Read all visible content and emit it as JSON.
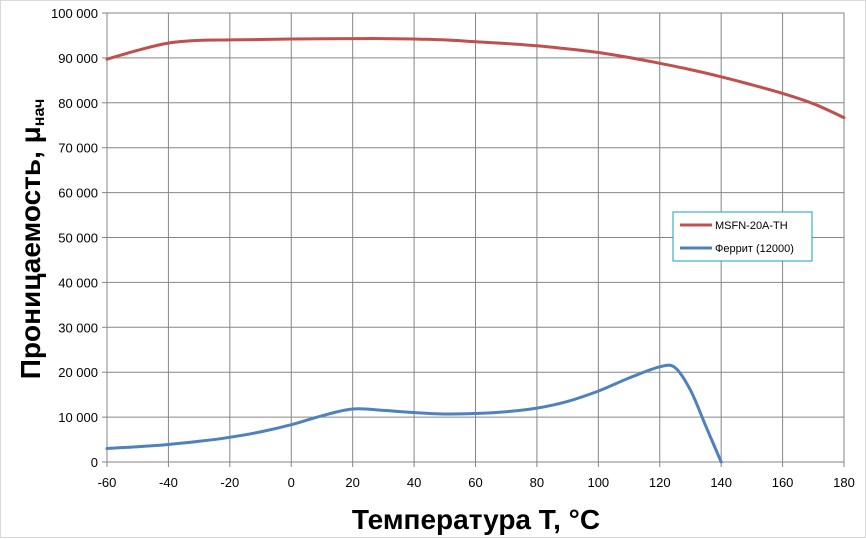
{
  "chart_data": {
    "type": "line",
    "title": "",
    "xlabel": "Температура Т, °С",
    "ylabel": "Проницаемость, μ",
    "ylabel_sub": "нач",
    "xlim": [
      -60,
      180
    ],
    "ylim": [
      0,
      100000
    ],
    "x_ticks": [
      -60,
      -40,
      -20,
      0,
      20,
      40,
      60,
      80,
      100,
      120,
      140,
      160,
      180
    ],
    "x_tick_labels": [
      "-60",
      "-40",
      "-20",
      "0",
      "20",
      "40",
      "60",
      "80",
      "100",
      "120",
      "140",
      "160",
      "180"
    ],
    "y_ticks": [
      0,
      10000,
      20000,
      30000,
      40000,
      50000,
      60000,
      70000,
      80000,
      90000,
      100000
    ],
    "y_tick_labels": [
      "0",
      "10 000",
      "20 000",
      "30 000",
      "40 000",
      "50 000",
      "60 000",
      "70 000",
      "80 000",
      "90 000",
      "100 000"
    ],
    "grid": true,
    "legend_position": "right",
    "series": [
      {
        "name": "MSFN-20A-TH",
        "color": "#c0504d",
        "x": [
          -60,
          -50,
          -40,
          -30,
          -20,
          -10,
          0,
          10,
          20,
          30,
          40,
          50,
          60,
          70,
          80,
          90,
          100,
          110,
          120,
          130,
          140,
          150,
          160,
          170,
          180
        ],
        "y": [
          89700,
          91700,
          93300,
          93900,
          94000,
          94100,
          94200,
          94250,
          94300,
          94300,
          94200,
          94000,
          93600,
          93200,
          92700,
          92000,
          91200,
          90100,
          88800,
          87400,
          85800,
          84000,
          82100,
          79800,
          76700
        ]
      },
      {
        "name": "Феррит (12000)",
        "color": "#4f81bd",
        "x": [
          -60,
          -50,
          -40,
          -30,
          -20,
          -10,
          0,
          10,
          20,
          30,
          40,
          50,
          60,
          70,
          80,
          90,
          100,
          110,
          120,
          125,
          130,
          135,
          140
        ],
        "y": [
          3000,
          3400,
          3900,
          4600,
          5500,
          6700,
          8300,
          10300,
          11800,
          11500,
          11000,
          10700,
          10800,
          11200,
          12000,
          13500,
          15800,
          18700,
          21200,
          21000,
          16000,
          8000,
          0
        ]
      }
    ]
  }
}
